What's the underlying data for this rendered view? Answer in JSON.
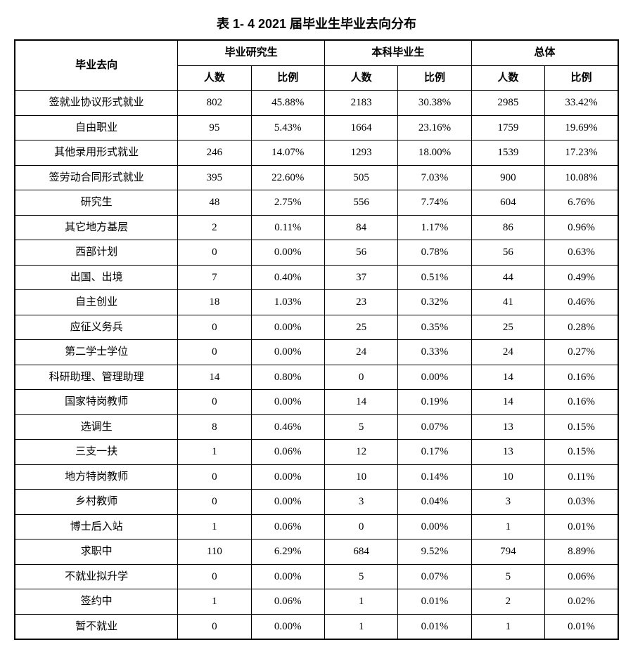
{
  "title": "表 1- 4   2021 届毕业生毕业去向分布",
  "table": {
    "type": "table",
    "background_color": "#ffffff",
    "border_color": "#000000",
    "header_font": "SimHei",
    "body_font_cn": "SimSun",
    "body_font_num": "Times New Roman",
    "font_size_pt": 11,
    "row_header": "毕业去向",
    "groups": [
      {
        "label": "毕业研究生",
        "sub1": "人数",
        "sub2": "比例"
      },
      {
        "label": "本科毕业生",
        "sub1": "人数",
        "sub2": "比例"
      },
      {
        "label": "总体",
        "sub1": "人数",
        "sub2": "比例"
      }
    ],
    "col_widths_pct": [
      27,
      12.16,
      12.16,
      12.16,
      12.16,
      12.16,
      12.16
    ],
    "alignment": [
      "center",
      "center",
      "center",
      "center",
      "center",
      "center",
      "center"
    ],
    "rows": [
      {
        "label": "签就业协议形式就业",
        "c1": "802",
        "p1": "45.88%",
        "c2": "2183",
        "p2": "30.38%",
        "c3": "2985",
        "p3": "33.42%"
      },
      {
        "label": "自由职业",
        "c1": "95",
        "p1": "5.43%",
        "c2": "1664",
        "p2": "23.16%",
        "c3": "1759",
        "p3": "19.69%"
      },
      {
        "label": "其他录用形式就业",
        "c1": "246",
        "p1": "14.07%",
        "c2": "1293",
        "p2": "18.00%",
        "c3": "1539",
        "p3": "17.23%"
      },
      {
        "label": "签劳动合同形式就业",
        "c1": "395",
        "p1": "22.60%",
        "c2": "505",
        "p2": "7.03%",
        "c3": "900",
        "p3": "10.08%"
      },
      {
        "label": "研究生",
        "c1": "48",
        "p1": "2.75%",
        "c2": "556",
        "p2": "7.74%",
        "c3": "604",
        "p3": "6.76%"
      },
      {
        "label": "其它地方基层",
        "c1": "2",
        "p1": "0.11%",
        "c2": "84",
        "p2": "1.17%",
        "c3": "86",
        "p3": "0.96%"
      },
      {
        "label": "西部计划",
        "c1": "0",
        "p1": "0.00%",
        "c2": "56",
        "p2": "0.78%",
        "c3": "56",
        "p3": "0.63%"
      },
      {
        "label": "出国、出境",
        "c1": "7",
        "p1": "0.40%",
        "c2": "37",
        "p2": "0.51%",
        "c3": "44",
        "p3": "0.49%"
      },
      {
        "label": "自主创业",
        "c1": "18",
        "p1": "1.03%",
        "c2": "23",
        "p2": "0.32%",
        "c3": "41",
        "p3": "0.46%"
      },
      {
        "label": "应征义务兵",
        "c1": "0",
        "p1": "0.00%",
        "c2": "25",
        "p2": "0.35%",
        "c3": "25",
        "p3": "0.28%"
      },
      {
        "label": "第二学士学位",
        "c1": "0",
        "p1": "0.00%",
        "c2": "24",
        "p2": "0.33%",
        "c3": "24",
        "p3": "0.27%"
      },
      {
        "label": "科研助理、管理助理",
        "c1": "14",
        "p1": "0.80%",
        "c2": "0",
        "p2": "0.00%",
        "c3": "14",
        "p3": "0.16%"
      },
      {
        "label": "国家特岗教师",
        "c1": "0",
        "p1": "0.00%",
        "c2": "14",
        "p2": "0.19%",
        "c3": "14",
        "p3": "0.16%"
      },
      {
        "label": "选调生",
        "c1": "8",
        "p1": "0.46%",
        "c2": "5",
        "p2": "0.07%",
        "c3": "13",
        "p3": "0.15%"
      },
      {
        "label": "三支一扶",
        "c1": "1",
        "p1": "0.06%",
        "c2": "12",
        "p2": "0.17%",
        "c3": "13",
        "p3": "0.15%"
      },
      {
        "label": "地方特岗教师",
        "c1": "0",
        "p1": "0.00%",
        "c2": "10",
        "p2": "0.14%",
        "c3": "10",
        "p3": "0.11%"
      },
      {
        "label": "乡村教师",
        "c1": "0",
        "p1": "0.00%",
        "c2": "3",
        "p2": "0.04%",
        "c3": "3",
        "p3": "0.03%"
      },
      {
        "label": "博士后入站",
        "c1": "1",
        "p1": "0.06%",
        "c2": "0",
        "p2": "0.00%",
        "c3": "1",
        "p3": "0.01%"
      },
      {
        "label": "求职中",
        "c1": "110",
        "p1": "6.29%",
        "c2": "684",
        "p2": "9.52%",
        "c3": "794",
        "p3": "8.89%"
      },
      {
        "label": "不就业拟升学",
        "c1": "0",
        "p1": "0.00%",
        "c2": "5",
        "p2": "0.07%",
        "c3": "5",
        "p3": "0.06%"
      },
      {
        "label": "签约中",
        "c1": "1",
        "p1": "0.06%",
        "c2": "1",
        "p2": "0.01%",
        "c3": "2",
        "p3": "0.02%"
      },
      {
        "label": "暂不就业",
        "c1": "0",
        "p1": "0.00%",
        "c2": "1",
        "p2": "0.01%",
        "c3": "1",
        "p3": "0.01%"
      }
    ]
  }
}
